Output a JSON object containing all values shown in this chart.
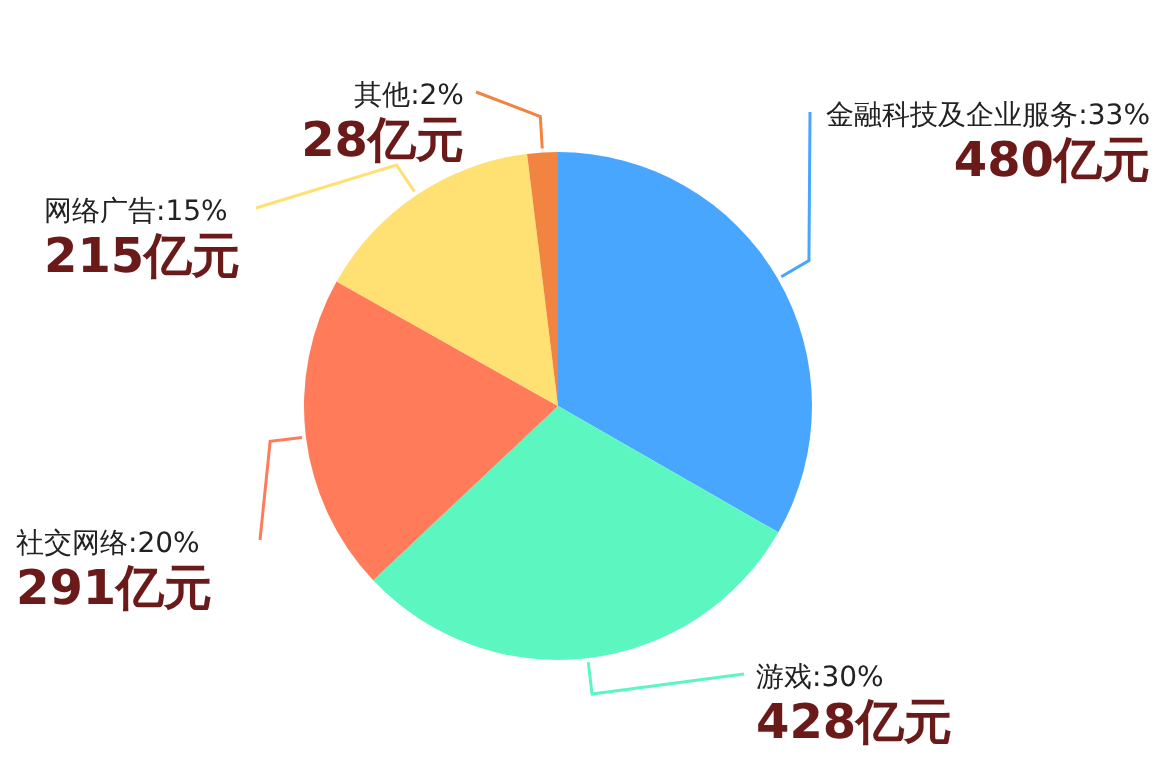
{
  "chart_data": {
    "type": "pie",
    "categories": [
      "金融科技及企业服务:33%",
      "游戏:30%",
      "社交网络:20%",
      "网络广告:15%",
      "其他:2%"
    ],
    "values": [
      480,
      428,
      291,
      215,
      28
    ],
    "value_labels": [
      "480亿元",
      "428亿元",
      "291亿元",
      "215亿元",
      "28亿元"
    ],
    "colors": [
      "#48a6ff",
      "#5cf7c0",
      "#ff7b5a",
      "#ffe073",
      "#f08440"
    ]
  }
}
